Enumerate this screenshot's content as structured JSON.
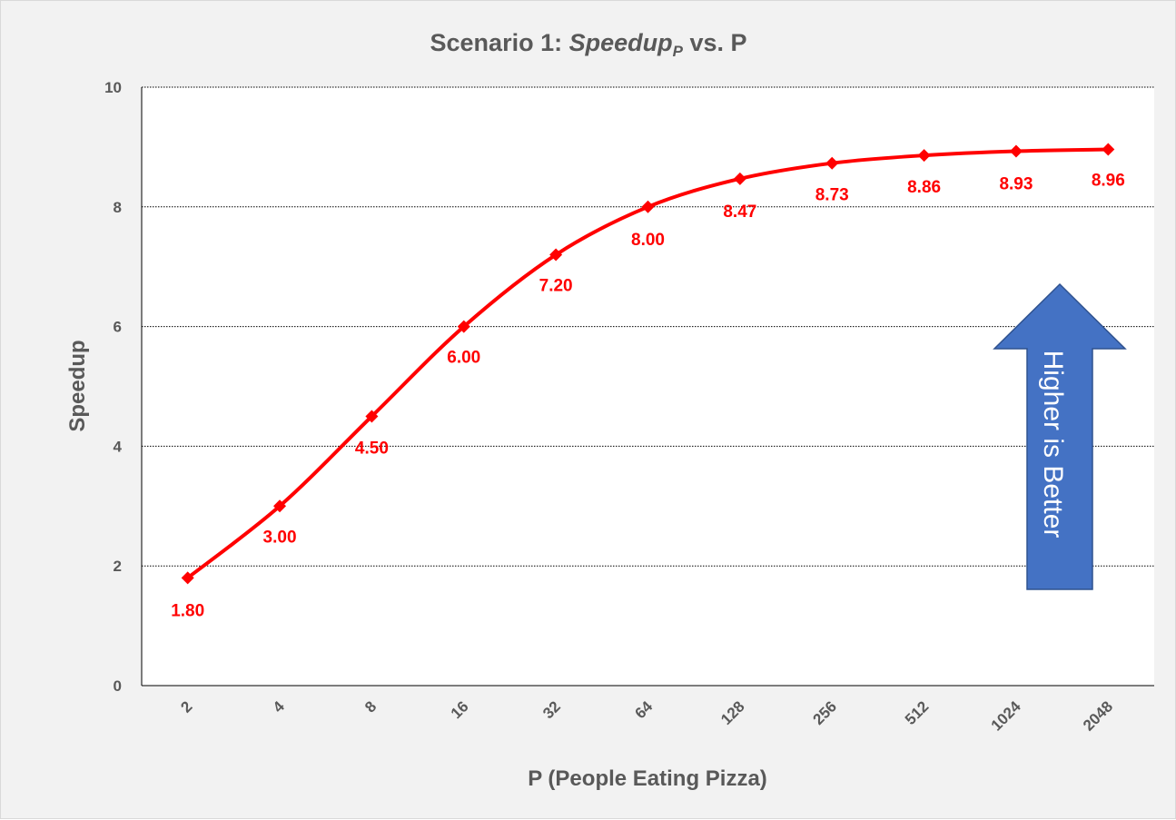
{
  "chart_data": {
    "type": "line",
    "title": "Scenario 1: ",
    "title_italic": "Speedup",
    "title_subscript": "P",
    "title_suffix": " vs. P",
    "xlabel": "P (People Eating Pizza)",
    "ylabel": "Speedup",
    "ylim": [
      0,
      10
    ],
    "yticks": [
      "0",
      "2",
      "4",
      "6",
      "8",
      "10"
    ],
    "grid": true,
    "categories": [
      "2",
      "4",
      "8",
      "16",
      "32",
      "64",
      "128",
      "256",
      "512",
      "1024",
      "2048"
    ],
    "series": [
      {
        "name": "Speedup",
        "values": [
          1.8,
          3.0,
          4.5,
          6.0,
          7.2,
          8.0,
          8.47,
          8.73,
          8.86,
          8.93,
          8.96
        ],
        "labels": [
          "1.80",
          "3.00",
          "4.50",
          "6.00",
          "7.20",
          "8.00",
          "8.47",
          "8.73",
          "8.86",
          "8.93",
          "8.96"
        ],
        "color": "#ff0000"
      }
    ],
    "annotation": {
      "text": "Higher is Better",
      "fill": "#4472c4",
      "stroke": "#2f528f"
    }
  }
}
